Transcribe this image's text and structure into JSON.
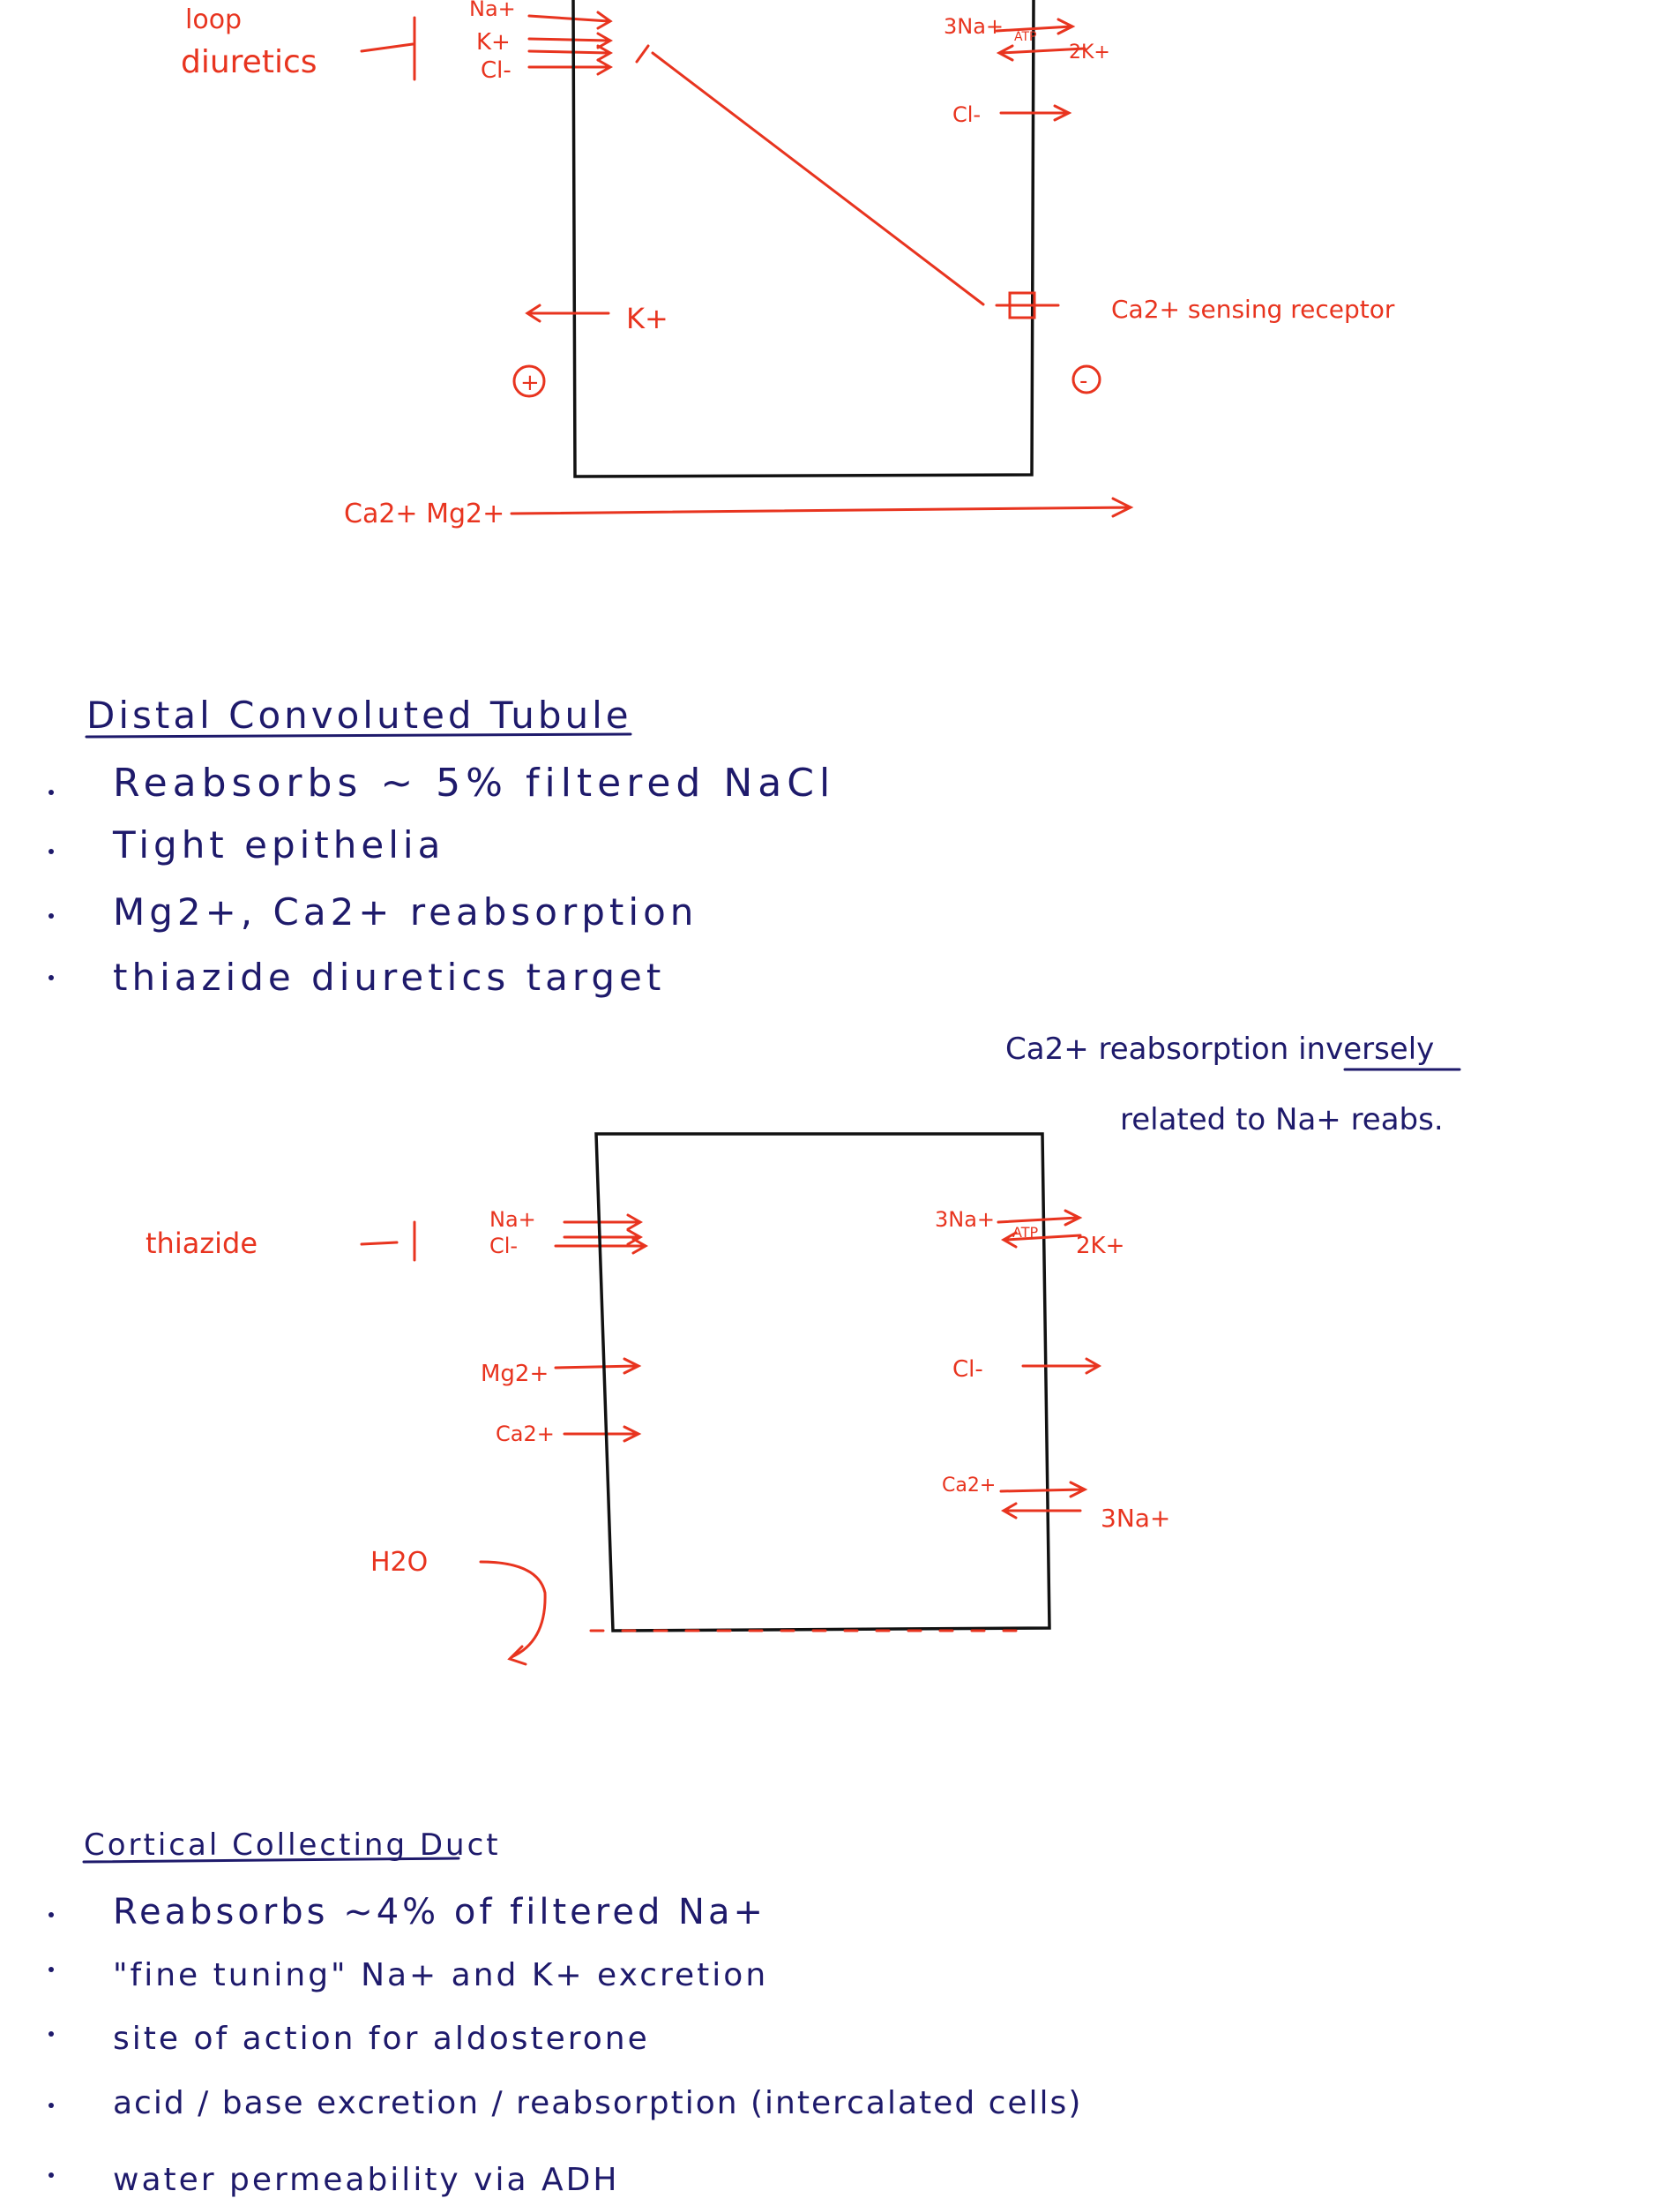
{
  "colors": {
    "ink_blue": "#1e1a6b",
    "ink_red": "#e8341f",
    "ink_black": "#111111"
  },
  "loop": {
    "diuretics_line1": "loop",
    "diuretics_line2": "diuretics",
    "ions": [
      "Na+",
      "K+",
      "Cl-"
    ],
    "k_out": "K+",
    "plus": "+",
    "minus": "-",
    "pump_in": "3Na+",
    "atp": "ATP",
    "pump_out": "2K+",
    "cl_out": "Cl-",
    "ca_receptor": "Ca2+ sensing receptor",
    "paracellular": "Ca2+ Mg2+"
  },
  "dct": {
    "title": "Distal Convoluted Tubule",
    "bullets": [
      "Reabsorbs ~ 5% filtered NaCl",
      "Tight epithelia",
      "Mg2+, Ca2+ reabsorption",
      "thiazide diuretics target"
    ],
    "note_line1": "Ca2+ reabsorption inversely",
    "note_line2": "related to Na+ reabs.",
    "thiazide": "thiazide",
    "ions_in": [
      "Na+",
      "Cl-"
    ],
    "mg": "Mg2+",
    "ca": "Ca2+",
    "pump_in": "3Na+",
    "atp": "ATP",
    "pump_out": "2K+",
    "cl_out": "Cl-",
    "ca_out": "Ca2+",
    "na_in": "3Na+",
    "water": "H2O"
  },
  "ccd": {
    "title": "Cortical Collecting Duct",
    "bullets": [
      "Reabsorbs ~4% of filtered Na+",
      "\"fine tuning\" Na+ and K+ excretion",
      "site of action for aldosterone",
      "acid / base excretion / reabsorption (intercalated cells)",
      "water permeability via ADH"
    ]
  }
}
